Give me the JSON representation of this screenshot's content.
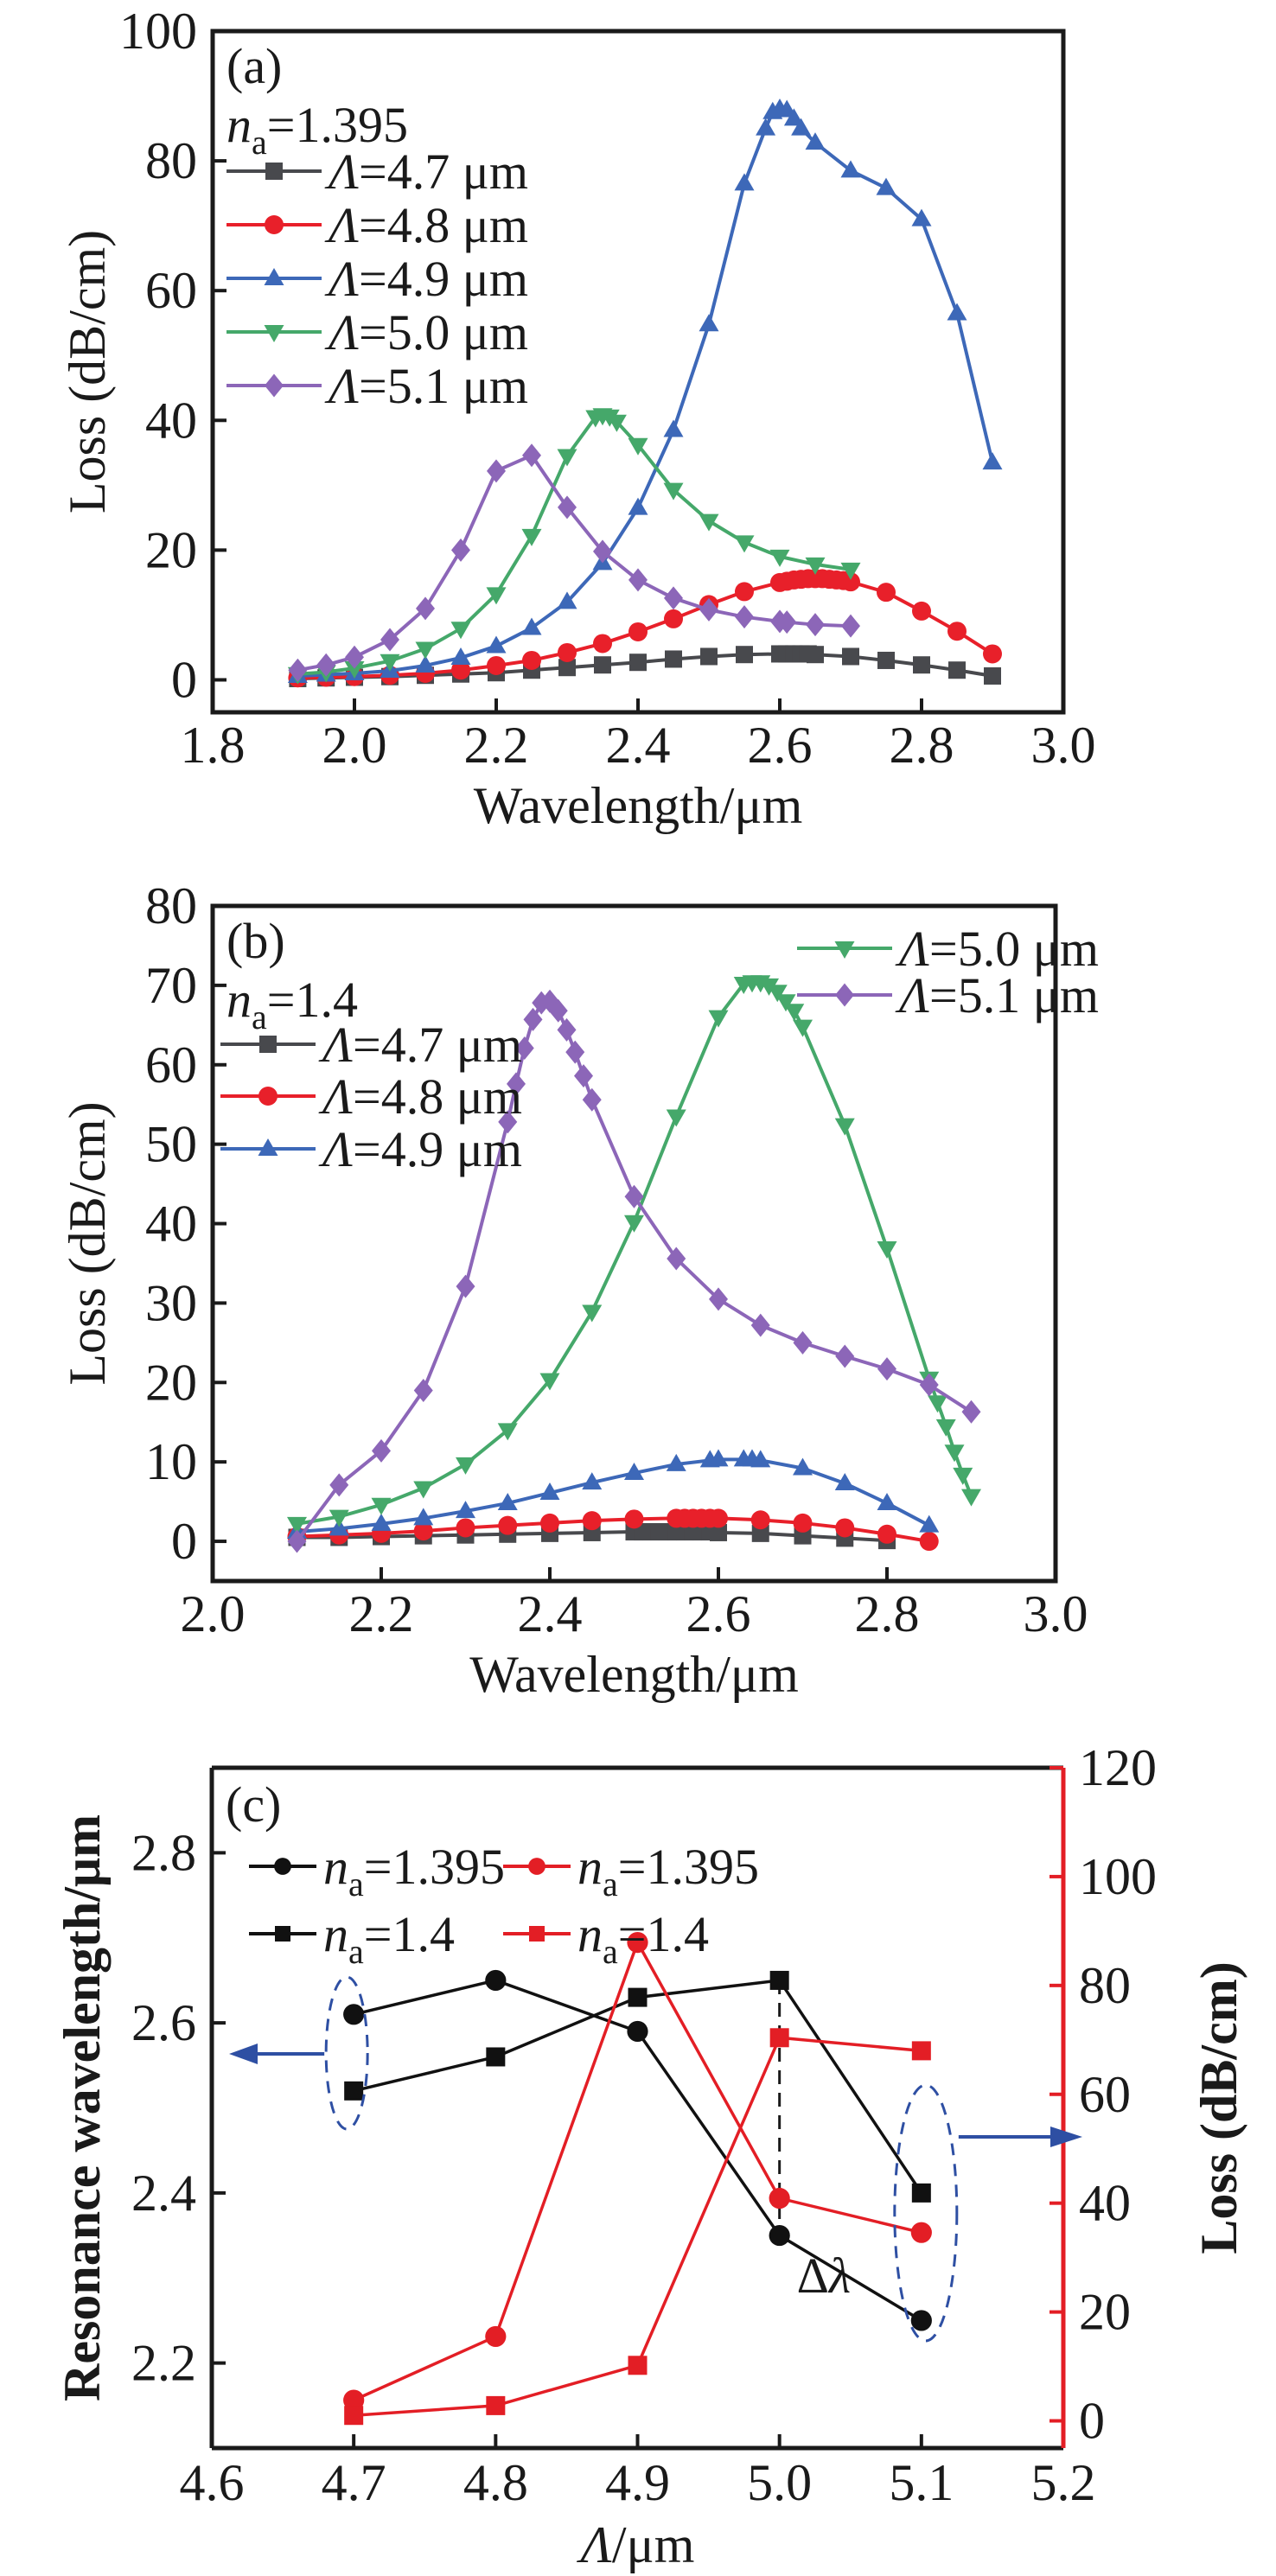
{
  "colors": {
    "L4.7": "#48494d",
    "L4.8": "#e8202a",
    "L4.9": "#3d68b8",
    "L5.0": "#45a86a",
    "L5.1": "#8c66b8",
    "black": "#111111",
    "red": "#e31e25",
    "annot_blue": "#2e4fa3"
  },
  "chart_data": [
    {
      "panel": "(a)",
      "type": "line",
      "annotation": "n_a=1.395",
      "annotation_main": "n",
      "annotation_sub": "a",
      "annotation_value": "=1.395",
      "xlabel": "Wavelength/μm",
      "ylabel": "Loss (dB/cm)",
      "xlim": [
        1.8,
        3.0
      ],
      "ylim": [
        -5,
        100
      ],
      "xticks": [
        "1.8",
        "2.0",
        "2.2",
        "2.4",
        "2.6",
        "2.8",
        "3.0"
      ],
      "yticks": [
        "0",
        "20",
        "40",
        "60",
        "80",
        "100"
      ],
      "legend": "top-left",
      "series": [
        {
          "name": "Λ=4.7 μm",
          "label_lambda": "Λ",
          "label_rest": "=4.7 μm",
          "color_key": "L4.7",
          "marker": "square",
          "x": [
            1.92,
            1.96,
            2.0,
            2.05,
            2.1,
            2.15,
            2.2,
            2.25,
            2.3,
            2.35,
            2.4,
            2.45,
            2.5,
            2.55,
            2.6,
            2.61,
            2.62,
            2.63,
            2.64,
            2.65,
            2.7,
            2.75,
            2.8,
            2.85,
            2.9
          ],
          "y": [
            0.2,
            0.3,
            0.4,
            0.5,
            0.7,
            0.9,
            1.1,
            1.5,
            1.9,
            2.3,
            2.7,
            3.2,
            3.6,
            3.9,
            4.0,
            4.0,
            4.0,
            4.0,
            4.0,
            3.9,
            3.6,
            3.0,
            2.3,
            1.5,
            0.6
          ]
        },
        {
          "name": "Λ=4.8 μm",
          "label_lambda": "Λ",
          "label_rest": "=4.8 μm",
          "color_key": "L4.8",
          "marker": "circle",
          "x": [
            1.92,
            1.96,
            2.0,
            2.05,
            2.1,
            2.15,
            2.2,
            2.25,
            2.3,
            2.35,
            2.4,
            2.45,
            2.5,
            2.55,
            2.6,
            2.61,
            2.62,
            2.63,
            2.64,
            2.65,
            2.66,
            2.67,
            2.68,
            2.69,
            2.7,
            2.75,
            2.8,
            2.85,
            2.9
          ],
          "y": [
            0.3,
            0.4,
            0.5,
            0.7,
            1.0,
            1.5,
            2.2,
            3.0,
            4.2,
            5.6,
            7.4,
            9.4,
            11.6,
            13.6,
            15.0,
            15.2,
            15.4,
            15.5,
            15.6,
            15.6,
            15.6,
            15.5,
            15.4,
            15.3,
            15.1,
            13.5,
            10.6,
            7.5,
            4.0
          ]
        },
        {
          "name": "Λ=4.9 μm",
          "label_lambda": "Λ",
          "label_rest": "=4.9 μm",
          "color_key": "L4.9",
          "marker": "triangle-up",
          "x": [
            1.92,
            1.96,
            2.0,
            2.05,
            2.1,
            2.15,
            2.2,
            2.25,
            2.3,
            2.35,
            2.4,
            2.45,
            2.5,
            2.55,
            2.58,
            2.59,
            2.6,
            2.61,
            2.62,
            2.63,
            2.65,
            2.7,
            2.75,
            2.8,
            2.85,
            2.9
          ],
          "y": [
            0.6,
            0.8,
            1.0,
            1.4,
            2.2,
            3.4,
            5.2,
            8.0,
            12.0,
            18.0,
            26.5,
            38.5,
            54.8,
            76.5,
            85.0,
            87.5,
            88.0,
            87.8,
            86.5,
            85.0,
            82.8,
            78.5,
            75.8,
            71.0,
            56.5,
            33.5
          ]
        },
        {
          "name": "Λ=5.0 μm",
          "label_lambda": "Λ",
          "label_rest": "=5.0 μm",
          "color_key": "L5.0",
          "marker": "triangle-down",
          "x": [
            1.92,
            1.96,
            2.0,
            2.05,
            2.1,
            2.15,
            2.2,
            2.25,
            2.3,
            2.34,
            2.35,
            2.36,
            2.37,
            2.4,
            2.45,
            2.5,
            2.55,
            2.6,
            2.65,
            2.7
          ],
          "y": [
            0.9,
            1.2,
            1.8,
            2.9,
            4.8,
            7.9,
            13.2,
            22.2,
            34.5,
            40.5,
            40.8,
            40.6,
            39.8,
            36.2,
            29.3,
            24.5,
            21.2,
            19.0,
            17.8,
            17.0
          ]
        },
        {
          "name": "Λ=5.1 μm",
          "label_lambda": "Λ",
          "label_rest": "=5.1 μm",
          "color_key": "L5.1",
          "marker": "diamond",
          "x": [
            1.92,
            1.96,
            2.0,
            2.05,
            2.1,
            2.15,
            2.2,
            2.25,
            2.3,
            2.35,
            2.4,
            2.45,
            2.5,
            2.55,
            2.6,
            2.61,
            2.65,
            2.7
          ],
          "y": [
            1.5,
            2.3,
            3.5,
            6.2,
            11.0,
            20.0,
            32.2,
            34.6,
            26.6,
            19.8,
            15.4,
            12.6,
            10.8,
            9.7,
            9.0,
            8.9,
            8.5,
            8.3
          ]
        }
      ]
    },
    {
      "panel": "(b)",
      "type": "line",
      "annotation": "n_a=1.4",
      "annotation_main": "n",
      "annotation_sub": "a",
      "annotation_value": "=1.4",
      "xlabel": "Wavelength/μm",
      "ylabel": "Loss (dB/cm)",
      "xlim": [
        2.0,
        3.0
      ],
      "ylim": [
        -5,
        80
      ],
      "xticks": [
        "2.0",
        "2.2",
        "2.4",
        "2.6",
        "2.8",
        "3.0"
      ],
      "yticks": [
        "0",
        "10",
        "20",
        "30",
        "40",
        "50",
        "60",
        "70",
        "80"
      ],
      "legend": "top-left and top-right (split)",
      "series": [
        {
          "name": "Λ=4.7 μm",
          "label_lambda": "Λ",
          "label_rest": "=4.7 μm",
          "color_key": "L4.7",
          "marker": "square",
          "x": [
            2.1,
            2.15,
            2.2,
            2.25,
            2.3,
            2.35,
            2.4,
            2.45,
            2.5,
            2.51,
            2.52,
            2.53,
            2.54,
            2.55,
            2.56,
            2.57,
            2.58,
            2.59,
            2.6,
            2.65,
            2.7,
            2.75,
            2.8
          ],
          "y": [
            0.5,
            0.5,
            0.6,
            0.7,
            0.8,
            0.9,
            1.0,
            1.1,
            1.2,
            1.2,
            1.2,
            1.2,
            1.2,
            1.2,
            1.2,
            1.2,
            1.2,
            1.2,
            1.1,
            1.0,
            0.7,
            0.4,
            0.1
          ]
        },
        {
          "name": "Λ=4.8 μm",
          "label_lambda": "Λ",
          "label_rest": "=4.8 μm",
          "color_key": "L4.8",
          "marker": "circle",
          "x": [
            2.1,
            2.15,
            2.2,
            2.25,
            2.3,
            2.35,
            2.4,
            2.45,
            2.5,
            2.55,
            2.56,
            2.57,
            2.58,
            2.59,
            2.6,
            2.65,
            2.7,
            2.75,
            2.8,
            2.85
          ],
          "y": [
            0.6,
            0.8,
            1.0,
            1.3,
            1.7,
            2.0,
            2.3,
            2.6,
            2.8,
            2.9,
            2.9,
            2.9,
            2.9,
            2.9,
            2.9,
            2.7,
            2.3,
            1.7,
            0.9,
            0.0
          ]
        },
        {
          "name": "Λ=4.9 μm",
          "label_lambda": "Λ",
          "label_rest": "=4.9 μm",
          "color_key": "L4.9",
          "marker": "triangle-up",
          "x": [
            2.1,
            2.15,
            2.2,
            2.25,
            2.3,
            2.35,
            2.4,
            2.45,
            2.5,
            2.55,
            2.59,
            2.6,
            2.63,
            2.64,
            2.65,
            2.7,
            2.75,
            2.8,
            2.85
          ],
          "y": [
            1.2,
            1.6,
            2.2,
            2.9,
            3.8,
            4.8,
            6.1,
            7.4,
            8.6,
            9.7,
            10.2,
            10.3,
            10.3,
            10.3,
            10.2,
            9.2,
            7.3,
            4.8,
            2.0
          ]
        },
        {
          "name": "Λ=5.0 μm",
          "label_lambda": "Λ",
          "label_rest": "=5.0 μm",
          "color_key": "L5.0",
          "marker": "triangle-down",
          "x": [
            2.1,
            2.15,
            2.2,
            2.25,
            2.3,
            2.35,
            2.4,
            2.45,
            2.5,
            2.55,
            2.6,
            2.63,
            2.64,
            2.65,
            2.66,
            2.67,
            2.68,
            2.69,
            2.7,
            2.75,
            2.8,
            2.85,
            2.86,
            2.87,
            2.88,
            2.89,
            2.9
          ],
          "y": [
            2.2,
            3.1,
            4.6,
            6.7,
            9.7,
            14.0,
            20.3,
            28.9,
            40.2,
            53.5,
            66.0,
            70.2,
            70.4,
            70.4,
            70.0,
            69.2,
            68.0,
            66.8,
            64.8,
            52.4,
            36.9,
            20.5,
            17.5,
            14.5,
            11.3,
            8.4,
            5.7
          ]
        },
        {
          "name": "Λ=5.1 μm",
          "label_lambda": "Λ",
          "label_rest": "=5.1 μm",
          "color_key": "L5.1",
          "marker": "diamond",
          "x": [
            2.1,
            2.15,
            2.2,
            2.25,
            2.3,
            2.35,
            2.36,
            2.37,
            2.38,
            2.39,
            2.4,
            2.41,
            2.42,
            2.43,
            2.44,
            2.45,
            2.5,
            2.55,
            2.6,
            2.65,
            2.7,
            2.75,
            2.8,
            2.85,
            2.9
          ],
          "y": [
            0.0,
            7.1,
            11.4,
            19.0,
            32.1,
            52.8,
            57.6,
            62.1,
            65.7,
            67.8,
            68.0,
            66.8,
            64.4,
            61.6,
            58.6,
            55.6,
            43.4,
            35.6,
            30.5,
            27.2,
            25.0,
            23.3,
            21.7,
            19.7,
            16.3
          ]
        }
      ]
    },
    {
      "panel": "(c)",
      "type": "line",
      "xlabel": "Λ/μm",
      "xlabel_lambda": "Λ",
      "xlabel_rest": "/μm",
      "ylabel": "Resonance wavelength/μm",
      "y2label": "Loss (dB/cm)",
      "xlim": [
        4.6,
        5.2
      ],
      "ylim": [
        2.1,
        2.9
      ],
      "y2lim": [
        -5,
        120
      ],
      "xticks": [
        "4.6",
        "4.7",
        "4.8",
        "4.9",
        "5.0",
        "5.1",
        "5.2"
      ],
      "yticks": [
        "2.2",
        "2.4",
        "2.6",
        "2.8"
      ],
      "y2ticks": [
        "0",
        "20",
        "40",
        "60",
        "80",
        "100",
        "120"
      ],
      "legend": "top-left (2×2)",
      "annotation_delta": "Δλ",
      "series": [
        {
          "name": "n_a=1.395",
          "label_main": "n",
          "label_sub": "a",
          "label_value": "=1.395",
          "axis": "left",
          "color_key": "black",
          "marker": "circle",
          "x": [
            4.7,
            4.8,
            4.9,
            5.0,
            5.1
          ],
          "y": [
            2.61,
            2.65,
            2.59,
            2.35,
            2.25
          ]
        },
        {
          "name": "n_a=1.4",
          "label_main": "n",
          "label_sub": "a",
          "label_value": "=1.4",
          "axis": "left",
          "color_key": "black",
          "marker": "square",
          "x": [
            4.7,
            4.8,
            4.9,
            5.0,
            5.1
          ],
          "y": [
            2.52,
            2.56,
            2.63,
            2.65,
            2.4
          ]
        },
        {
          "name": "n_a=1.395",
          "label_main": "n",
          "label_sub": "a",
          "label_value": "=1.395",
          "axis": "right",
          "color_key": "red",
          "marker": "circle",
          "x": [
            4.7,
            4.8,
            4.9,
            5.0,
            5.1
          ],
          "y": [
            3.8,
            15.5,
            87.9,
            40.9,
            34.6
          ]
        },
        {
          "name": "n_a=1.4",
          "label_main": "n",
          "label_sub": "a",
          "label_value": "=1.4",
          "axis": "right",
          "color_key": "red",
          "marker": "square",
          "x": [
            4.7,
            4.8,
            4.9,
            5.0,
            5.1
          ],
          "y": [
            1.0,
            2.8,
            10.2,
            70.4,
            68.0
          ]
        }
      ]
    }
  ]
}
